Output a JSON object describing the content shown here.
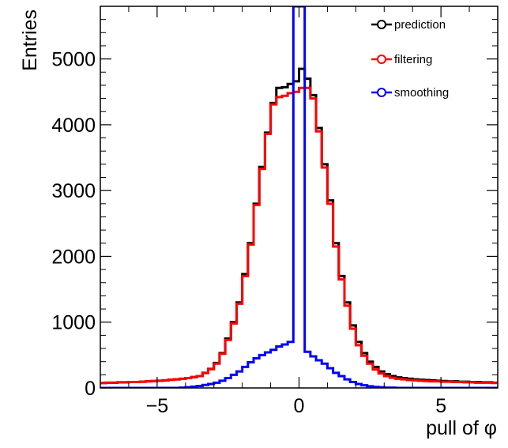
{
  "chart_data": {
    "type": "line",
    "style": "step-histogram",
    "xlabel": "pull of φ",
    "ylabel": "Entries",
    "xlim": [
      -7,
      7
    ],
    "ylim": [
      0,
      5800
    ],
    "x_ticks": [
      -5,
      0,
      5
    ],
    "x_tick_labels": [
      "−5",
      "0",
      "5"
    ],
    "y_ticks": [
      0,
      1000,
      2000,
      3000,
      4000,
      5000
    ],
    "y_tick_labels": [
      "0",
      "1000",
      "2000",
      "3000",
      "4000",
      "5000"
    ],
    "grid": false,
    "legend_position": "top-right",
    "bin_width": 0.2,
    "bin_low_edges": [
      -7.0,
      -6.8,
      -6.6,
      -6.4,
      -6.2,
      -6.0,
      -5.8,
      -5.6,
      -5.4,
      -5.2,
      -5.0,
      -4.8,
      -4.6,
      -4.4,
      -4.2,
      -4.0,
      -3.8,
      -3.6,
      -3.4,
      -3.2,
      -3.0,
      -2.8,
      -2.6,
      -2.4,
      -2.2,
      -2.0,
      -1.8,
      -1.6,
      -1.4,
      -1.2,
      -1.0,
      -0.8,
      -0.6,
      -0.4,
      -0.2,
      0.0,
      0.2,
      0.4,
      0.6,
      0.8,
      1.0,
      1.2,
      1.4,
      1.6,
      1.8,
      2.0,
      2.2,
      2.4,
      2.6,
      2.8,
      3.0,
      3.2,
      3.4,
      3.6,
      3.8,
      4.0,
      4.2,
      4.4,
      4.6,
      4.8,
      5.0,
      5.2,
      5.4,
      5.6,
      5.8,
      6.0,
      6.2,
      6.4,
      6.6,
      6.8
    ],
    "series": [
      {
        "name": "prediction",
        "color": "#000000",
        "values": [
          75,
          80,
          80,
          85,
          85,
          90,
          90,
          95,
          100,
          105,
          110,
          115,
          125,
          130,
          140,
          150,
          165,
          180,
          230,
          290,
          380,
          530,
          750,
          1000,
          1300,
          1730,
          2200,
          2800,
          3360,
          3880,
          4330,
          4560,
          4570,
          4620,
          4660,
          4850,
          4700,
          4450,
          3950,
          3400,
          2850,
          2200,
          1700,
          1300,
          950,
          700,
          530,
          400,
          320,
          250,
          210,
          180,
          160,
          150,
          140,
          130,
          125,
          120,
          115,
          110,
          105,
          100,
          100,
          95,
          95,
          90,
          90,
          85,
          85,
          80
        ]
      },
      {
        "name": "filtering",
        "color": "#ff0000",
        "values": [
          75,
          80,
          80,
          85,
          85,
          90,
          90,
          95,
          100,
          105,
          110,
          115,
          125,
          130,
          140,
          150,
          165,
          180,
          225,
          285,
          370,
          520,
          730,
          980,
          1280,
          1700,
          2180,
          2780,
          3330,
          3860,
          4310,
          4420,
          4440,
          4480,
          4500,
          4560,
          4560,
          4400,
          3900,
          3350,
          2800,
          2150,
          1650,
          1250,
          900,
          650,
          490,
          370,
          280,
          220,
          180,
          155,
          140,
          130,
          120,
          115,
          110,
          105,
          100,
          100,
          95,
          95,
          90,
          90,
          85,
          85,
          80,
          80,
          80,
          75
        ]
      },
      {
        "name": "smoothing",
        "color": "#0000ff",
        "values": [
          0,
          0,
          0,
          0,
          0,
          0,
          0,
          0,
          0,
          0,
          0,
          0,
          0,
          0,
          5,
          10,
          20,
          30,
          45,
          60,
          80,
          110,
          150,
          200,
          250,
          320,
          390,
          450,
          500,
          540,
          580,
          630,
          660,
          700,
          6000,
          6000,
          550,
          480,
          420,
          370,
          300,
          230,
          180,
          130,
          90,
          60,
          40,
          25,
          15,
          10,
          5,
          5,
          0,
          0,
          0,
          0,
          0,
          0,
          0,
          0,
          0,
          0,
          0,
          0,
          0,
          0,
          0,
          0,
          0,
          0
        ]
      }
    ]
  }
}
